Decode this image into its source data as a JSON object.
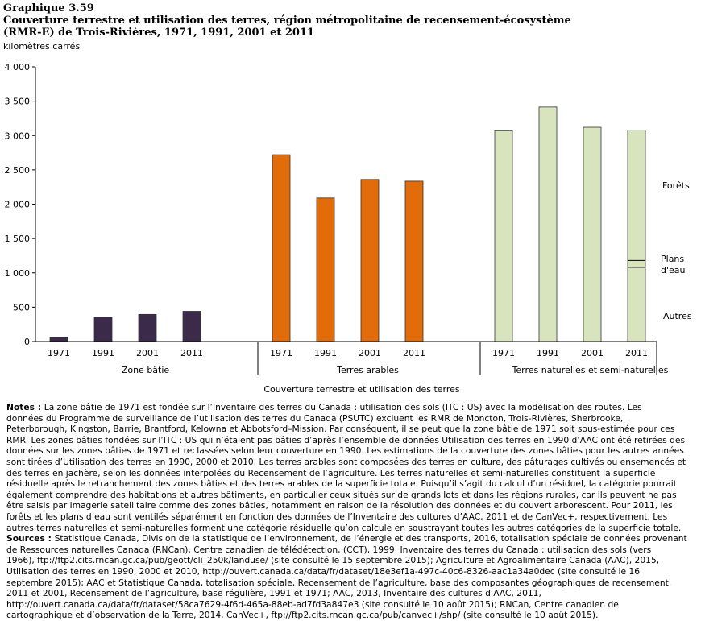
{
  "header": {
    "graph_number": "Graphique 3.59",
    "title_line1": "Couverture terrestre et utilisation  des terres, région métropolitaine  de recensement-écosystème",
    "title_line2": "(RMR-E) de Trois-Rivières, 1971, 1991, 2001 et 2011",
    "units": "kilomètres carrés"
  },
  "chart_data": {
    "type": "bar",
    "title": "Couverture terrestre et utilisation des terres, région métropolitaine de recensement-écosystème (RMR-E) de Trois-Rivières, 1971, 1991, 2001 et 2011",
    "ylabel": "kilomètres carrés",
    "xlabel": "Couverture terrestre et utilisation des terres",
    "ylim": [
      0,
      4000
    ],
    "yticks": [
      0,
      500,
      1000,
      1500,
      2000,
      2500,
      3000,
      3500,
      4000
    ],
    "ytick_labels": [
      "0",
      "500",
      "1 000",
      "1 500",
      "2 000",
      "2 500",
      "3 000",
      "3 500",
      "4 000"
    ],
    "grid": false,
    "groups": [
      {
        "name": "Zone bâtie",
        "color": "#3b2a4a",
        "years": [
          "1971",
          "1991",
          "2001",
          "2011"
        ],
        "values": [
          65,
          355,
          395,
          440
        ]
      },
      {
        "name": "Terres arables",
        "color": "#e36c0a",
        "years": [
          "1971",
          "1991",
          "2001",
          "2011"
        ],
        "values": [
          2720,
          2090,
          2360,
          2335
        ]
      },
      {
        "name": "Terres naturelles et semi-naturelles",
        "color": "#d7e4bd",
        "years": [
          "1971",
          "1991",
          "2001",
          "2011"
        ],
        "values": [
          3070,
          3415,
          3120,
          3080
        ],
        "breakdown_2011": [
          {
            "name": "Autres",
            "value": 1080
          },
          {
            "name": "Plans d'eau",
            "value": 100
          },
          {
            "name": "Forêts",
            "value": 1900
          }
        ]
      }
    ],
    "annotations": [
      "Forêts",
      "Plans",
      "d'eau",
      "Autres"
    ]
  },
  "notes": {
    "notes_label": "Notes :",
    "notes_lines": [
      "La zone bâtie de 1971 est fondée sur l’Inventaire des terres du Canada : utilisation des sols (ITC : US) avec la modélisation des routes. Les",
      "données du Programme de surveillance de l’utilisation des terres du Canada (PSUTC) excluent  les RMR de Moncton, Trois-Rivières, Sherbrooke,",
      "Peterborough, Kingston, Barrie, Brantford, Kelowna et Abbotsford–Mission. Par conséquent, il se peut que la zone bâtie de 1971 soit sous-estimée pour ces",
      "RMR. Les zones bâties fondées sur l’ITC : US qui n’étaient pas bâties d’après l’ensemble de données Utilisation des terres en 1990 d’AAC ont été retirées des",
      "données sur les zones bâties de 1971 et reclassées selon leur couverture en 1990. Les estimations de la couverture des zones bâties pour les autres années",
      "sont tirées d’Utilisation des terres en 1990, 2000 et 2010. Les terres arables sont composées des terres en culture, des pâturages cultivés ou ensemencés et",
      "des terres en jachère, selon les données interpolées du Recensement de l’agriculture. Les terres naturelles et semi-naturelles constituent la superficie",
      "résiduelle après le retranchement des zones bâties et des terres arables de la superficie totale. Puisqu’il s’agit du calcul d’un résiduel, la catégorie pourrait",
      "également comprendre des habitations et autres bâtiments, en particulier ceux situés sur de grands lots et dans les régions rurales, car ils peuvent ne pas",
      "être saisis par imagerie satellitaire comme des zones bâties, notamment en raison de la résolution des données et du couvert arborescent. Pour 2011, les",
      "forêts et les plans d’eau sont ventilés séparément en fonction des données de l’Inventaire des cultures d’AAC, 2011 et de CanVec+, respectivement. Les",
      "autres terres naturelles et semi-naturelles forment une catégorie résiduelle qu’on calcule en soustrayant toutes les autres catégories de la superficie totale."
    ],
    "sources_label": "Sources :",
    "sources_lines": [
      "Statistique Canada, Division de la statistique de l’environnement, de l’énergie et des transports, 2016, totalisation spéciale de données provenant",
      "de Ressources naturelles Canada (RNCan), Centre canadien de télédétection, (CCT), 1999, Inventaire des terres du Canada : utilisation des sols (vers",
      "1966), ftp://ftp2.cits.rncan.gc.ca/pub/geott/cli_250k/landuse/ (site consulté le 15 septembre 2015); Agriculture et Agroalimentaire Canada (AAC), 2015,",
      "Utilisation des terres en 1990, 2000 et 2010, http://ouvert.canada.ca/data/fr/dataset/18e3ef1a-497c-40c6-8326-aac1a34a0dec (site consulté le 16",
      "septembre 2015); AAC et Statistique Canada, totalisation spéciale, Recensement de l’agriculture, base des composantes géographiques de recensement,",
      "2011 et 2001, Recensement de l’agriculture, base régulière, 1991 et 1971; AAC, 2013, Inventaire des cultures d’AAC, 2011,",
      "http://ouvert.canada.ca/data/fr/dataset/58ca7629-4f6d-465a-88eb-ad7fd3a847e3 (site consulté le 10 août 2015); RNCan, Centre canadien de",
      "cartographique et d’observation de la Terre, 2014, CanVec+, ftp://ftp2.cits.rncan.gc.ca/pub/canvec+/shp/ (site consulté le 10 août 2015)."
    ]
  }
}
